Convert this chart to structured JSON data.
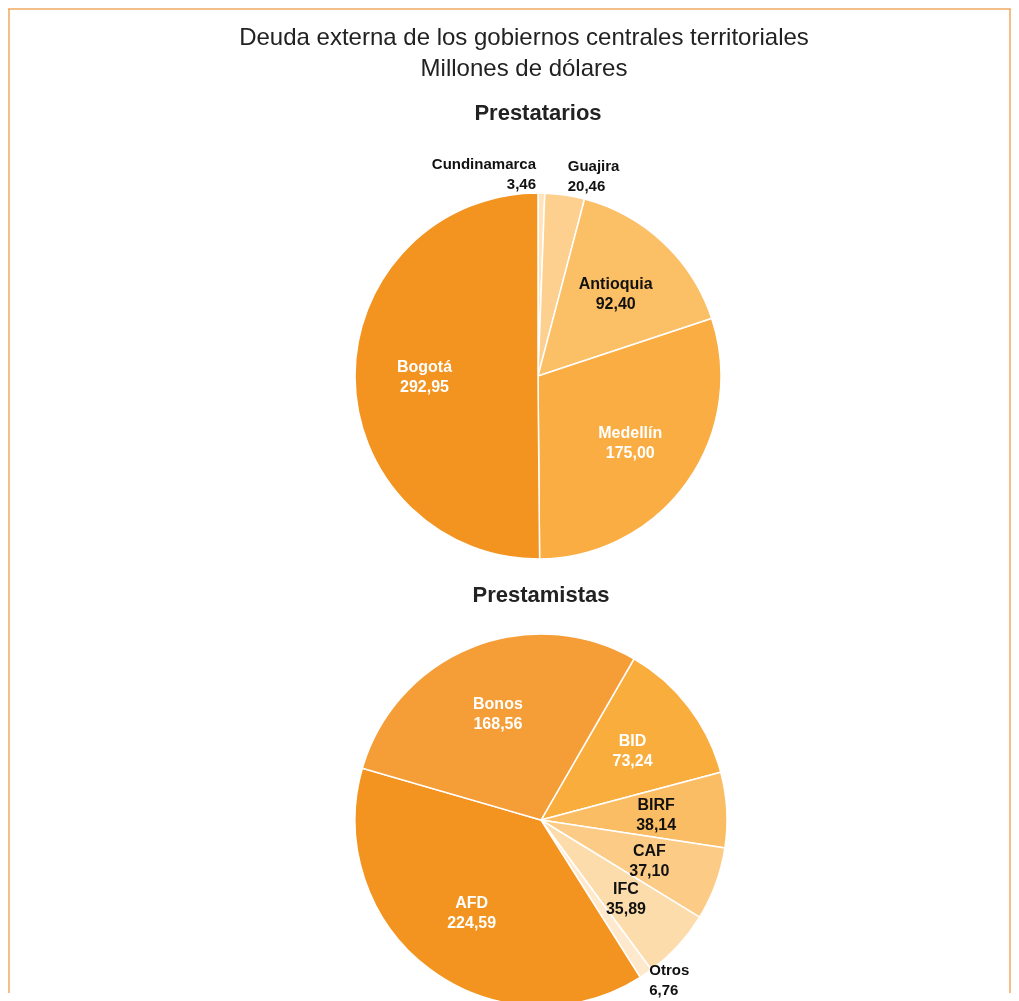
{
  "chart_data": [
    {
      "type": "pie",
      "title": "Prestatarios",
      "annotations": [
        "Deuda externa de los gobiernos centrales territoriales",
        "Millones de dólares"
      ],
      "categories": [
        "Cundinamarca",
        "Guajira",
        "Antioquia",
        "Medellín",
        "Bogotá"
      ],
      "values": [
        3.46,
        20.46,
        92.4,
        175.0,
        292.95
      ],
      "colors": [
        "#fee3bb",
        "#fdd08f",
        "#fbbf66",
        "#f9ad42",
        "#f39320"
      ],
      "value_labels": [
        "3,46",
        "20,46",
        "92,40",
        "175,00",
        "292,95"
      ]
    },
    {
      "type": "pie",
      "title": "Prestamistas",
      "categories": [
        "BID",
        "BIRF",
        "CAF",
        "IFC",
        "Otros",
        "AFD",
        "Bonos"
      ],
      "values": [
        73.24,
        38.14,
        37.1,
        35.89,
        6.76,
        224.59,
        168.56
      ],
      "colors": [
        "#f9ad3d",
        "#fbbd64",
        "#fccb86",
        "#fddcab",
        "#fee9cc",
        "#f39420",
        "#f59e38"
      ],
      "value_labels": [
        "73,24",
        "38,14",
        "37,10",
        "35,89",
        "6,76",
        "224,59",
        "168,56"
      ]
    }
  ]
}
